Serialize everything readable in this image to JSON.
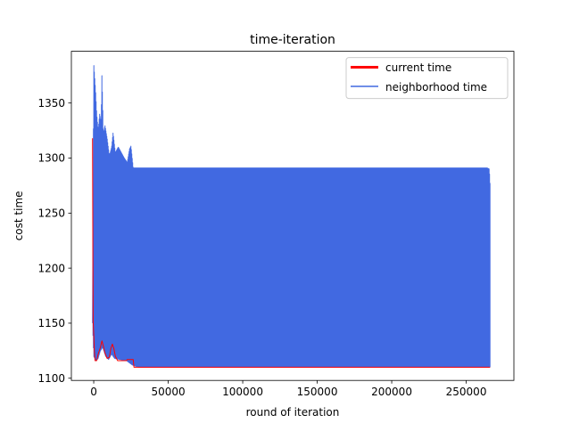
{
  "chart_data": {
    "type": "line",
    "title": "time-iteration",
    "xlabel": "round of iteration",
    "ylabel": "cost time",
    "xlim": [
      -15000,
      282000
    ],
    "ylim": [
      1098,
      1397
    ],
    "xticks": [
      {
        "value": 0,
        "label": "0"
      },
      {
        "value": 50000,
        "label": "50000"
      },
      {
        "value": 100000,
        "label": "100000"
      },
      {
        "value": 150000,
        "label": "150000"
      },
      {
        "value": 200000,
        "label": "200000"
      },
      {
        "value": 250000,
        "label": "250000"
      }
    ],
    "yticks": [
      {
        "value": 1100,
        "label": "1100"
      },
      {
        "value": 1150,
        "label": "1150"
      },
      {
        "value": 1200,
        "label": "1200"
      },
      {
        "value": 1250,
        "label": "1250"
      },
      {
        "value": 1300,
        "label": "1300"
      },
      {
        "value": 1350,
        "label": "1350"
      }
    ],
    "grid": false,
    "legend": "top-right",
    "series": [
      {
        "name": "neighborhood time",
        "color": "#4169e1",
        "style": "dense oscillation between lower and upper envelope",
        "upper": [
          [
            -800,
            1150
          ],
          [
            0,
            1386
          ],
          [
            1200,
            1362
          ],
          [
            2000,
            1340
          ],
          [
            3000,
            1325
          ],
          [
            4000,
            1340
          ],
          [
            5000,
            1332
          ],
          [
            5500,
            1376
          ],
          [
            6500,
            1320
          ],
          [
            7500,
            1330
          ],
          [
            9000,
            1318
          ],
          [
            10500,
            1302
          ],
          [
            12000,
            1310
          ],
          [
            13000,
            1323
          ],
          [
            14500,
            1305
          ],
          [
            16500,
            1310
          ],
          [
            18500,
            1305
          ],
          [
            20500,
            1300
          ],
          [
            22500,
            1296
          ],
          [
            24000,
            1308
          ],
          [
            25000,
            1311
          ],
          [
            26500,
            1291
          ],
          [
            30000,
            1291
          ],
          [
            100000,
            1291
          ],
          [
            200000,
            1291
          ],
          [
            264000,
            1291
          ],
          [
            265500,
            1290
          ],
          [
            266000,
            1276
          ]
        ],
        "lower": [
          [
            -800,
            1150
          ],
          [
            0,
            1120
          ],
          [
            1500,
            1116
          ],
          [
            3000,
            1118
          ],
          [
            4500,
            1125
          ],
          [
            6000,
            1128
          ],
          [
            8000,
            1120
          ],
          [
            10000,
            1117
          ],
          [
            12000,
            1122
          ],
          [
            14000,
            1118
          ],
          [
            18000,
            1117
          ],
          [
            22000,
            1116
          ],
          [
            26000,
            1112
          ],
          [
            30000,
            1110
          ],
          [
            100000,
            1110
          ],
          [
            200000,
            1110
          ],
          [
            266000,
            1110
          ]
        ]
      },
      {
        "name": "current time",
        "color": "#ff0000",
        "points": [
          [
            -800,
            1318
          ],
          [
            -600,
            1222
          ],
          [
            -400,
            1152
          ],
          [
            0,
            1140
          ],
          [
            400,
            1125
          ],
          [
            900,
            1116
          ],
          [
            2000,
            1116
          ],
          [
            3000,
            1122
          ],
          [
            4500,
            1128
          ],
          [
            5500,
            1134
          ],
          [
            6500,
            1129
          ],
          [
            7500,
            1123
          ],
          [
            9000,
            1118
          ],
          [
            10500,
            1119
          ],
          [
            11500,
            1127
          ],
          [
            12500,
            1131
          ],
          [
            13500,
            1127
          ],
          [
            14500,
            1120
          ],
          [
            16000,
            1116
          ],
          [
            18000,
            1116
          ],
          [
            20000,
            1116
          ],
          [
            22000,
            1116
          ],
          [
            22500,
            1117
          ],
          [
            26500,
            1117
          ],
          [
            27000,
            1110
          ],
          [
            100000,
            1110
          ],
          [
            200000,
            1110
          ],
          [
            266000,
            1110
          ]
        ]
      }
    ]
  }
}
